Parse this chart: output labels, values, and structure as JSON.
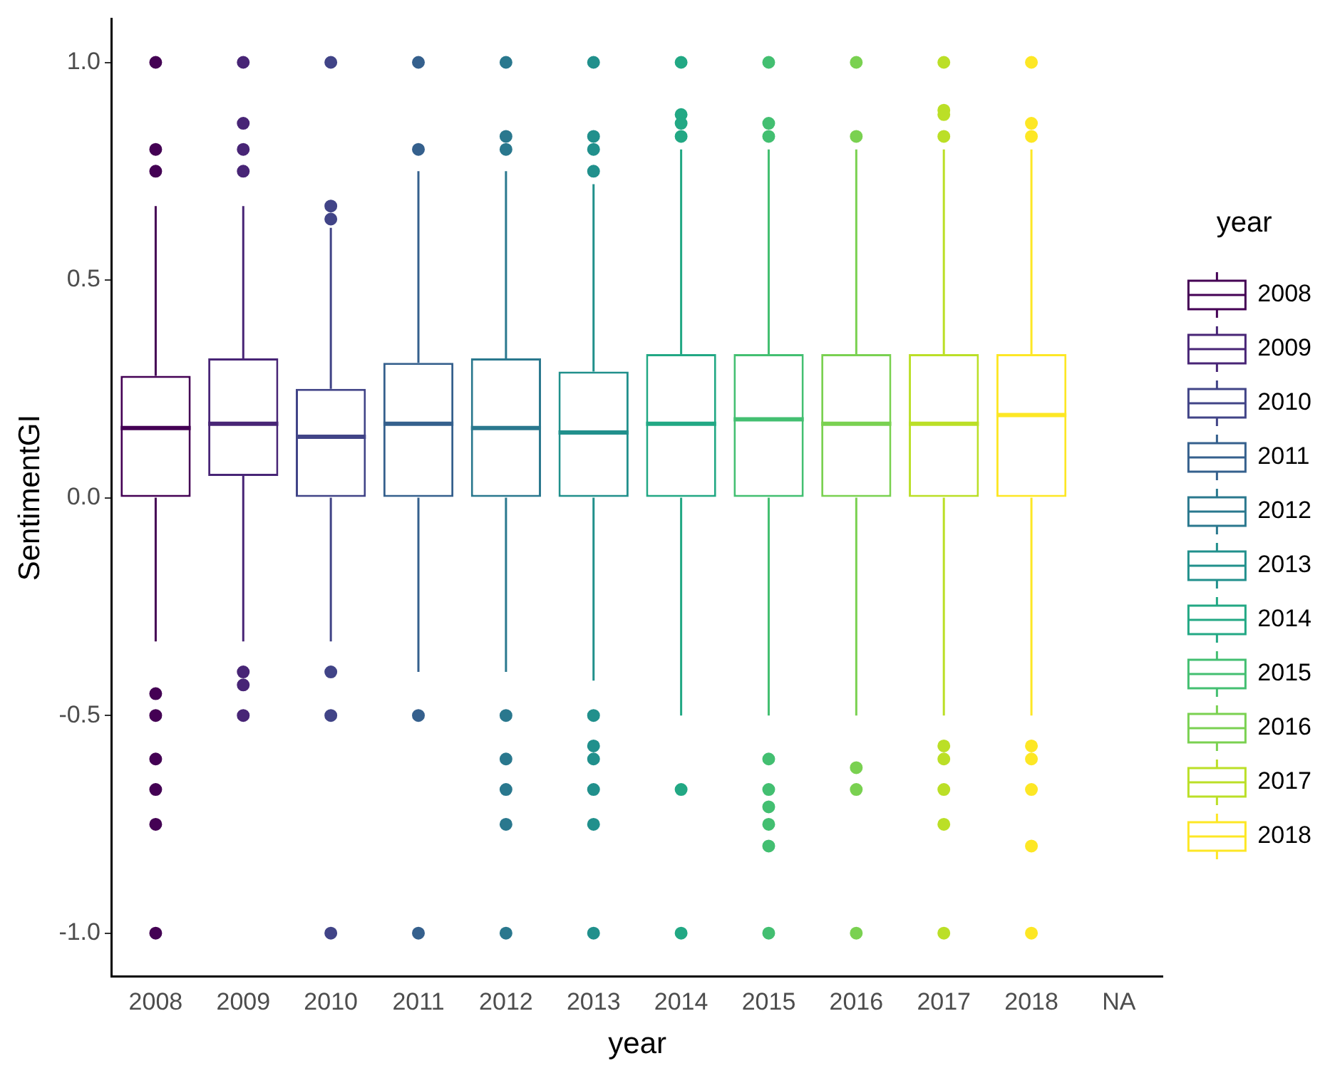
{
  "chart_data": {
    "type": "box",
    "xlabel": "year",
    "ylabel": "SentimentGI",
    "legend_title": "year",
    "legend": "right",
    "grid": false,
    "categories": [
      "2008",
      "2009",
      "2010",
      "2011",
      "2012",
      "2013",
      "2014",
      "2015",
      "2016",
      "2017",
      "2018",
      "NA"
    ],
    "ylim": [
      -1.1,
      1.1
    ],
    "yticks": [
      {
        "value": -1,
        "label": "-1.0"
      },
      {
        "value": -0.5,
        "label": "-0.5"
      },
      {
        "value": 0,
        "label": "0.0"
      },
      {
        "value": 0.5,
        "label": "0.5"
      },
      {
        "value": 1,
        "label": "1.0"
      }
    ],
    "series": [
      {
        "name": "2008",
        "color": "#440154",
        "boxes": [
          {
            "low": -0.33,
            "q1": 0,
            "median": 0.16,
            "q3": 0.28,
            "high": 0.67,
            "outliers": [
              1,
              0.8,
              0.75,
              -0.45,
              -0.5,
              -0.6,
              -0.67,
              -0.75,
              -1
            ]
          },
          null,
          null,
          null,
          null,
          null,
          null,
          null,
          null,
          null,
          null,
          null
        ]
      },
      {
        "name": "2009",
        "color": "#482576",
        "boxes": [
          null,
          {
            "low": -0.33,
            "q1": 0.05,
            "median": 0.17,
            "q3": 0.32,
            "high": 0.67,
            "outliers": [
              1,
              0.86,
              0.8,
              0.75,
              -0.4,
              -0.43,
              -0.5
            ]
          },
          null,
          null,
          null,
          null,
          null,
          null,
          null,
          null,
          null,
          null
        ]
      },
      {
        "name": "2010",
        "color": "#414487",
        "boxes": [
          null,
          null,
          {
            "low": -0.33,
            "q1": 0,
            "median": 0.14,
            "q3": 0.25,
            "high": 0.62,
            "outliers": [
              1,
              0.67,
              0.64,
              -0.4,
              -0.5,
              -1
            ]
          },
          null,
          null,
          null,
          null,
          null,
          null,
          null,
          null,
          null
        ]
      },
      {
        "name": "2011",
        "color": "#35608d",
        "boxes": [
          null,
          null,
          null,
          {
            "low": -0.4,
            "q1": 0,
            "median": 0.17,
            "q3": 0.31,
            "high": 0.75,
            "outliers": [
              1,
              0.8,
              -0.5,
              -1
            ]
          },
          null,
          null,
          null,
          null,
          null,
          null,
          null,
          null
        ]
      },
      {
        "name": "2012",
        "color": "#2a788e",
        "boxes": [
          null,
          null,
          null,
          null,
          {
            "low": -0.4,
            "q1": 0,
            "median": 0.16,
            "q3": 0.32,
            "high": 0.75,
            "outliers": [
              1,
              0.83,
              0.8,
              -0.5,
              -0.6,
              -0.67,
              -0.75,
              -1
            ]
          },
          null,
          null,
          null,
          null,
          null,
          null,
          null
        ]
      },
      {
        "name": "2013",
        "color": "#21908c",
        "boxes": [
          null,
          null,
          null,
          null,
          null,
          {
            "low": -0.42,
            "q1": 0,
            "median": 0.15,
            "q3": 0.29,
            "high": 0.72,
            "outliers": [
              1,
              0.83,
              0.8,
              0.75,
              -0.5,
              -0.57,
              -0.6,
              -0.67,
              -0.75,
              -1
            ]
          },
          null,
          null,
          null,
          null,
          null,
          null
        ]
      },
      {
        "name": "2014",
        "color": "#22a884",
        "boxes": [
          null,
          null,
          null,
          null,
          null,
          null,
          {
            "low": -0.5,
            "q1": 0,
            "median": 0.17,
            "q3": 0.33,
            "high": 0.8,
            "outliers": [
              1,
              0.88,
              0.86,
              0.83,
              -0.67,
              -1
            ]
          },
          null,
          null,
          null,
          null,
          null
        ]
      },
      {
        "name": "2015",
        "color": "#43bf71",
        "boxes": [
          null,
          null,
          null,
          null,
          null,
          null,
          null,
          {
            "low": -0.5,
            "q1": 0,
            "median": 0.18,
            "q3": 0.33,
            "high": 0.8,
            "outliers": [
              1,
              0.86,
              0.83,
              -0.6,
              -0.67,
              -0.71,
              -0.75,
              -0.8,
              -1
            ]
          },
          null,
          null,
          null,
          null
        ]
      },
      {
        "name": "2016",
        "color": "#7ad151",
        "boxes": [
          null,
          null,
          null,
          null,
          null,
          null,
          null,
          null,
          {
            "low": -0.5,
            "q1": 0,
            "median": 0.17,
            "q3": 0.33,
            "high": 0.8,
            "outliers": [
              1,
              0.83,
              -0.62,
              -0.67,
              -1
            ]
          },
          null,
          null,
          null
        ]
      },
      {
        "name": "2017",
        "color": "#bbdf27",
        "boxes": [
          null,
          null,
          null,
          null,
          null,
          null,
          null,
          null,
          null,
          {
            "low": -0.5,
            "q1": 0,
            "median": 0.17,
            "q3": 0.33,
            "high": 0.8,
            "outliers": [
              1,
              0.89,
              0.88,
              0.83,
              -0.57,
              -0.6,
              -0.67,
              -0.75,
              -1
            ]
          },
          null,
          null
        ]
      },
      {
        "name": "2018",
        "color": "#fde725",
        "boxes": [
          null,
          null,
          null,
          null,
          null,
          null,
          null,
          null,
          null,
          null,
          {
            "low": -0.5,
            "q1": 0,
            "median": 0.19,
            "q3": 0.33,
            "high": 0.8,
            "outliers": [
              1,
              0.86,
              0.83,
              -0.57,
              -0.6,
              -0.67,
              -0.8,
              -1
            ]
          },
          null
        ]
      }
    ]
  }
}
